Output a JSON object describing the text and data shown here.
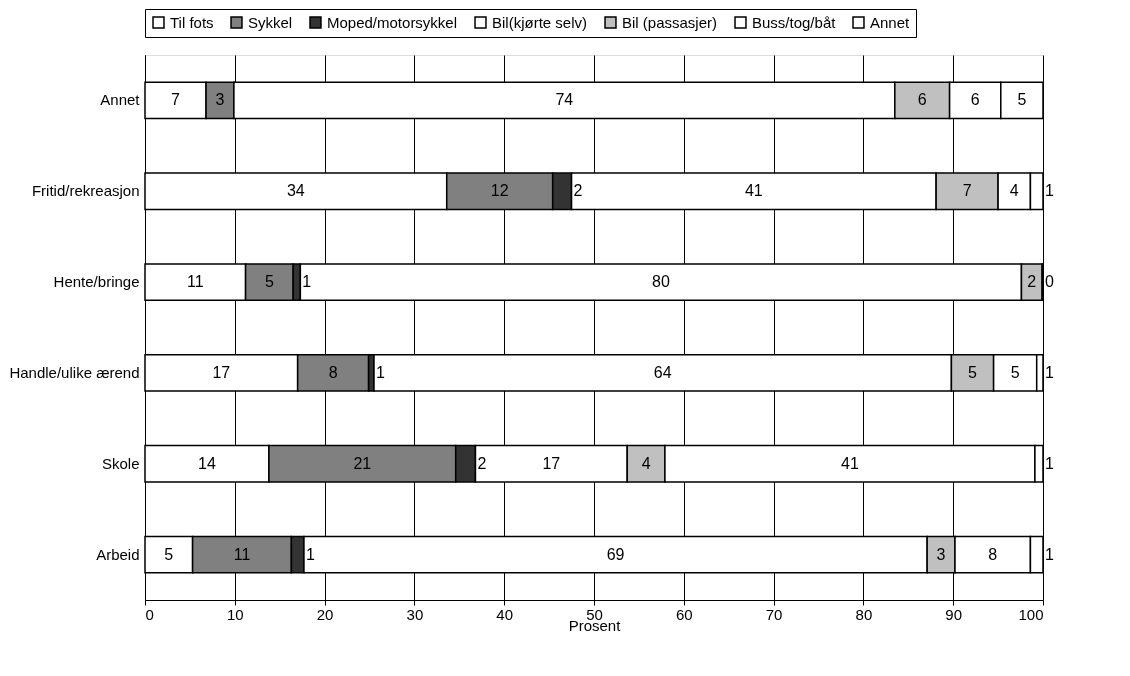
{
  "chart_data": {
    "type": "bar",
    "orientation": "horizontal",
    "stacked": true,
    "xlabel": "Prosent",
    "categories": [
      "Annet",
      "Fritid/rekreasjon",
      "Hente/bringe",
      "Handle/ulike ærend",
      "Skole",
      "Arbeid"
    ],
    "series": [
      {
        "name": "Til fots",
        "color": "#ffffff",
        "values": [
          6.8,
          33.6,
          11.2,
          17.0,
          13.8,
          5.3
        ],
        "value_labels": [
          "7",
          "34",
          "11",
          "17",
          "14",
          "5"
        ]
      },
      {
        "name": "Sykkel",
        "color": "#808080",
        "values": [
          3.1,
          11.8,
          5.3,
          7.9,
          20.8,
          11.0
        ],
        "value_labels": [
          "3",
          "12",
          "5",
          "8",
          "21",
          "11"
        ]
      },
      {
        "name": "Moped/motorsykkel",
        "color": "#333333",
        "values": [
          0,
          2.1,
          0.8,
          0.6,
          2.2,
          1.4
        ],
        "value_labels": [
          null,
          "2",
          "1",
          "1",
          "2",
          "1"
        ]
      },
      {
        "name": "Bil(kjørte selv)",
        "color": "#ffffff",
        "values": [
          73.6,
          40.6,
          80.3,
          64.3,
          16.9,
          69.4
        ],
        "value_labels": [
          "74",
          "41",
          "80",
          "64",
          "17",
          "69"
        ]
      },
      {
        "name": "Bil (passasjer)",
        "color": "#c0c0c0",
        "values": [
          6.1,
          6.9,
          2.3,
          4.7,
          4.2,
          3.1
        ],
        "value_labels": [
          "6",
          "7",
          "2",
          "5",
          "4",
          "3"
        ]
      },
      {
        "name": "Buss/tog/båt",
        "color": "#ffffff",
        "values": [
          5.7,
          3.6,
          0.1,
          4.8,
          41.2,
          8.4
        ],
        "value_labels": [
          "6",
          "4",
          "0",
          "5",
          "41",
          "8"
        ]
      },
      {
        "name": "Annet",
        "color": "#ffffff",
        "values": [
          4.7,
          1.4,
          0,
          0.7,
          0.9,
          1.4
        ],
        "value_labels": [
          "5",
          "1",
          null,
          "1",
          "1",
          "1"
        ]
      }
    ],
    "xlim": [
      0,
      100
    ],
    "xticks": [
      0,
      10,
      20,
      30,
      40,
      50,
      60,
      70,
      80,
      90,
      100
    ],
    "grid": "x",
    "legend": "top"
  }
}
